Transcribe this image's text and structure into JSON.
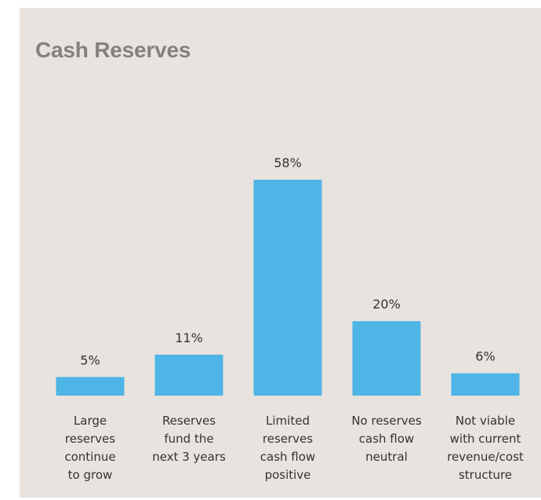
{
  "chart_data": {
    "type": "bar",
    "title": "Cash Reserves",
    "categories": [
      [
        "Large",
        "reserves",
        "continue",
        "to grow"
      ],
      [
        "Reserves",
        "fund the",
        "next 3 years"
      ],
      [
        "Limited",
        "reserves",
        "cash flow",
        "positive"
      ],
      [
        "No reserves",
        "cash flow",
        "neutral"
      ],
      [
        "Not viable",
        "with current",
        "revenue/cost",
        "structure"
      ]
    ],
    "values": [
      5,
      11,
      58,
      20,
      6
    ],
    "value_labels": [
      "5%",
      "11%",
      "58%",
      "20%",
      "6%"
    ],
    "unit": "%",
    "xlabel": "",
    "ylabel": "",
    "ylim": [
      0,
      58
    ],
    "grid": false,
    "legend": "none",
    "colors": {
      "bar": "#4fb4e6",
      "background": "#e8e3de",
      "title": "#84817a",
      "text": "#333333"
    }
  }
}
